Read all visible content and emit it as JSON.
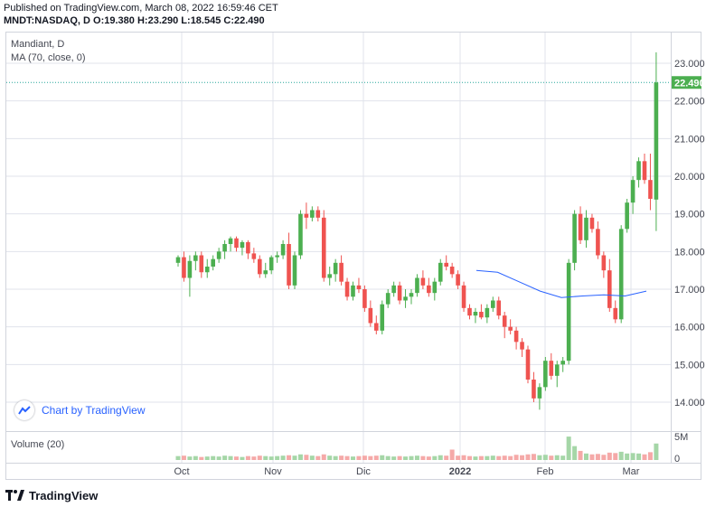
{
  "header": {
    "published": "Published on TradingView.com, March 08, 2022 16:59:46 CET",
    "symbol": "MNDT:NASDAQ, D",
    "o_label": "O:",
    "o_value": "19.380",
    "h_label": "H:",
    "h_value": "23.290",
    "l_label": "L:",
    "l_value": "18.545",
    "c_label": "C:",
    "c_value": "22.490"
  },
  "legend": {
    "title": "Mandiant, D",
    "ma": "MA (70, close, 0)"
  },
  "volume_legend": "Volume (20)",
  "brand_box": "Chart by TradingView",
  "footer": "TradingView",
  "colors": {
    "up": "#26a69a",
    "up_body": "#4caf50",
    "down": "#ef5350",
    "ma": "#2962ff",
    "grid": "#e0e3eb",
    "price_line": "#26a69a"
  },
  "chart_data": {
    "type": "candlestick",
    "title": "Mandiant, D",
    "ylim": [
      13.5,
      23.6
    ],
    "y_ticks": [
      "23.000",
      "22.000",
      "21.000",
      "20.000",
      "19.000",
      "18.000",
      "17.000",
      "16.000",
      "15.000",
      "14.000"
    ],
    "x_ticks": [
      "Oct",
      "Nov",
      "Dic",
      "2022",
      "Feb",
      "Mar"
    ],
    "last_price": "22.490",
    "candles": [
      [
        17.7,
        17.9,
        17.6,
        17.85
      ],
      [
        17.85,
        18.0,
        17.2,
        17.3
      ],
      [
        17.3,
        17.9,
        16.8,
        17.75
      ],
      [
        17.75,
        18.0,
        17.5,
        17.9
      ],
      [
        17.9,
        18.0,
        17.3,
        17.45
      ],
      [
        17.45,
        17.8,
        17.3,
        17.6
      ],
      [
        17.6,
        17.9,
        17.5,
        17.8
      ],
      [
        17.8,
        18.1,
        17.7,
        18.0
      ],
      [
        18.0,
        18.3,
        17.8,
        18.2
      ],
      [
        18.2,
        18.4,
        18.0,
        18.35
      ],
      [
        18.35,
        18.4,
        18.0,
        18.1
      ],
      [
        18.1,
        18.3,
        17.9,
        18.25
      ],
      [
        18.25,
        18.3,
        17.8,
        17.95
      ],
      [
        17.95,
        18.1,
        17.7,
        17.8
      ],
      [
        17.8,
        17.9,
        17.3,
        17.4
      ],
      [
        17.4,
        17.7,
        17.3,
        17.5
      ],
      [
        17.5,
        17.9,
        17.4,
        17.85
      ],
      [
        17.85,
        18.0,
        17.7,
        17.9
      ],
      [
        17.9,
        18.3,
        17.8,
        18.2
      ],
      [
        18.2,
        18.5,
        17.0,
        17.1
      ],
      [
        17.1,
        18.0,
        17.0,
        17.9
      ],
      [
        17.9,
        19.1,
        17.8,
        19.0
      ],
      [
        19.0,
        19.3,
        18.6,
        18.9
      ],
      [
        18.9,
        19.2,
        18.8,
        19.1
      ],
      [
        19.1,
        19.2,
        18.8,
        18.9
      ],
      [
        18.9,
        19.1,
        17.2,
        17.3
      ],
      [
        17.3,
        17.6,
        17.1,
        17.4
      ],
      [
        17.4,
        17.8,
        17.2,
        17.7
      ],
      [
        17.7,
        17.9,
        17.1,
        17.2
      ],
      [
        17.2,
        17.3,
        16.7,
        16.8
      ],
      [
        16.8,
        17.2,
        16.7,
        17.1
      ],
      [
        17.1,
        17.3,
        16.9,
        17.0
      ],
      [
        17.0,
        17.1,
        16.4,
        16.5
      ],
      [
        16.5,
        16.7,
        16.0,
        16.1
      ],
      [
        16.1,
        16.3,
        15.8,
        15.9
      ],
      [
        15.9,
        16.7,
        15.8,
        16.6
      ],
      [
        16.6,
        17.0,
        16.5,
        16.9
      ],
      [
        16.9,
        17.2,
        16.8,
        17.1
      ],
      [
        17.1,
        17.2,
        16.6,
        16.7
      ],
      [
        16.7,
        17.0,
        16.5,
        16.8
      ],
      [
        16.8,
        17.0,
        16.6,
        16.9
      ],
      [
        16.9,
        17.4,
        16.8,
        17.3
      ],
      [
        17.3,
        17.5,
        17.0,
        17.1
      ],
      [
        17.1,
        17.3,
        16.8,
        16.9
      ],
      [
        16.9,
        17.3,
        16.7,
        17.2
      ],
      [
        17.2,
        17.8,
        17.1,
        17.7
      ],
      [
        17.7,
        17.9,
        17.5,
        17.6
      ],
      [
        17.6,
        17.7,
        17.3,
        17.4
      ],
      [
        17.4,
        17.5,
        17.0,
        17.1
      ],
      [
        17.1,
        17.2,
        16.4,
        16.5
      ],
      [
        16.5,
        16.6,
        16.2,
        16.3
      ],
      [
        16.3,
        16.5,
        16.1,
        16.4
      ],
      [
        16.4,
        16.6,
        16.2,
        16.25
      ],
      [
        16.25,
        16.6,
        16.1,
        16.5
      ],
      [
        16.5,
        16.8,
        16.4,
        16.7
      ],
      [
        16.7,
        16.8,
        16.2,
        16.3
      ],
      [
        16.3,
        16.4,
        15.7,
        16.0
      ],
      [
        16.0,
        16.2,
        15.8,
        15.9
      ],
      [
        15.9,
        16.0,
        15.4,
        15.6
      ],
      [
        15.6,
        15.7,
        15.2,
        15.4
      ],
      [
        15.4,
        15.5,
        14.5,
        14.6
      ],
      [
        14.6,
        14.8,
        14.0,
        14.1
      ],
      [
        14.1,
        14.5,
        13.8,
        14.4
      ],
      [
        14.4,
        15.2,
        14.3,
        15.1
      ],
      [
        15.1,
        15.3,
        14.6,
        14.7
      ],
      [
        14.7,
        15.1,
        14.4,
        15.0
      ],
      [
        15.0,
        15.2,
        14.8,
        15.1
      ],
      [
        15.1,
        17.8,
        15.0,
        17.7
      ],
      [
        17.7,
        19.1,
        17.5,
        19.0
      ],
      [
        19.0,
        19.2,
        18.2,
        18.3
      ],
      [
        18.3,
        19.1,
        18.1,
        18.9
      ],
      [
        18.9,
        19.0,
        18.5,
        18.6
      ],
      [
        18.6,
        18.8,
        17.8,
        17.9
      ],
      [
        17.9,
        18.0,
        17.3,
        17.5
      ],
      [
        17.5,
        17.8,
        16.4,
        16.5
      ],
      [
        16.5,
        16.7,
        16.1,
        16.2
      ],
      [
        16.2,
        18.7,
        16.1,
        18.6
      ],
      [
        18.6,
        19.4,
        18.5,
        19.3
      ],
      [
        19.3,
        20.0,
        19.0,
        19.9
      ],
      [
        19.9,
        20.5,
        19.7,
        20.4
      ],
      [
        20.4,
        20.6,
        19.8,
        19.9
      ],
      [
        19.9,
        20.6,
        19.1,
        19.4
      ],
      [
        19.38,
        23.29,
        18.545,
        22.49
      ]
    ],
    "ma_70": [
      [
        17.5,
        17.45
      ],
      [
        17.45,
        17.3
      ],
      [
        17.2,
        17.05
      ],
      [
        16.95,
        16.8
      ],
      [
        16.78,
        16.8
      ],
      [
        16.82,
        16.85
      ],
      [
        16.85,
        16.82
      ],
      [
        16.82,
        16.9
      ],
      [
        16.95,
        17.02
      ]
    ],
    "volume_axis": [
      "5M",
      "0"
    ],
    "volume": [
      0.9,
      1.0,
      0.8,
      0.9,
      0.7,
      0.8,
      0.9,
      0.8,
      1.0,
      0.9,
      0.8,
      0.7,
      0.9,
      0.8,
      1.0,
      0.9,
      0.8,
      0.9,
      1.0,
      1.1,
      1.0,
      1.3,
      1.2,
      1.0,
      0.9,
      1.3,
      1.0,
      0.9,
      1.0,
      0.9,
      0.8,
      0.9,
      1.0,
      0.9,
      1.0,
      1.1,
      0.9,
      0.8,
      0.9,
      0.8,
      0.9,
      1.0,
      0.9,
      0.8,
      0.9,
      1.1,
      1.0,
      2.4,
      1.0,
      1.1,
      0.9,
      0.8,
      0.9,
      0.9,
      1.0,
      0.9,
      1.0,
      0.9,
      1.2,
      1.1,
      1.3,
      1.4,
      1.1,
      1.2,
      1.0,
      1.1,
      1.0,
      5.4,
      3.2,
      2.1,
      1.5,
      1.3,
      1.4,
      1.2,
      1.7,
      1.6,
      1.9,
      1.5,
      1.6,
      1.5,
      1.3,
      1.8,
      3.8
    ]
  }
}
